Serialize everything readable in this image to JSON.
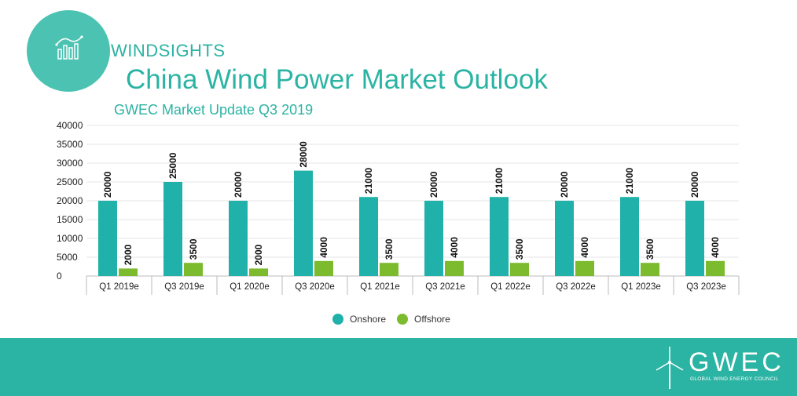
{
  "header": {
    "brand": "WINDSIGHTS",
    "title": "China Wind Power Market Outlook",
    "subtitle": "GWEC Market Update Q3 2019"
  },
  "logo": {
    "icon": "bar-chart-trend-icon"
  },
  "legend": {
    "onshore": "Onshore",
    "offshore": "Offshore"
  },
  "footer": {
    "org_short": "GWEC",
    "org_full": "GLOBAL WIND ENERGY COUNCIL",
    "icon": "wind-turbine-icon"
  },
  "colors": {
    "onshore": "#20b2aa",
    "offshore": "#7cbb2e",
    "brand": "#2bb3a3"
  },
  "chart_data": {
    "type": "bar",
    "categories": [
      "Q1 2019e",
      "Q3 2019e",
      "Q1 2020e",
      "Q3 2020e",
      "Q1 2021e",
      "Q3 2021e",
      "Q1 2022e",
      "Q3 2022e",
      "Q1 2023e",
      "Q3 2023e"
    ],
    "series": [
      {
        "name": "Onshore",
        "values": [
          20000,
          25000,
          20000,
          28000,
          21000,
          20000,
          21000,
          20000,
          21000,
          20000
        ]
      },
      {
        "name": "Offshore",
        "values": [
          2000,
          3500,
          2000,
          4000,
          3500,
          4000,
          3500,
          4000,
          3500,
          4000
        ]
      }
    ],
    "yticks": [
      0,
      5000,
      10000,
      15000,
      20000,
      25000,
      30000,
      35000,
      40000
    ],
    "ylim": [
      0,
      40000
    ],
    "grid": true,
    "legend_position": "bottom",
    "data_labels": true
  }
}
